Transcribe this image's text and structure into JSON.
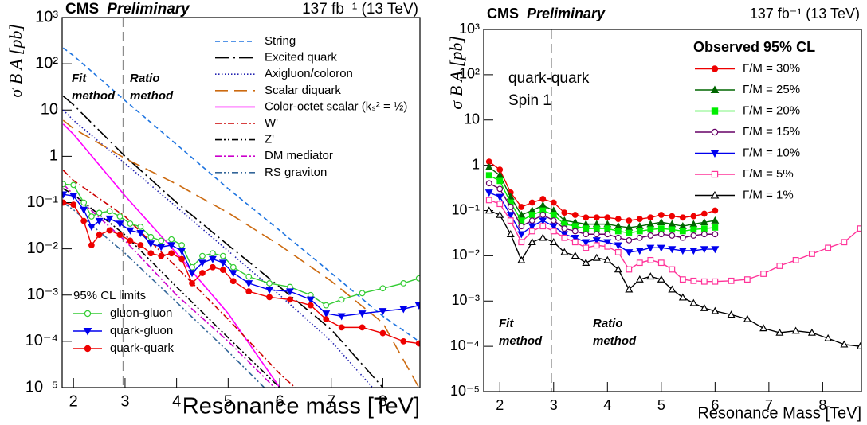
{
  "chart_data": [
    {
      "type": "line",
      "log_y": true,
      "title": "CMS",
      "subtitle": "Preliminary",
      "lumi": "137 fb⁻¹ (13 TeV)",
      "xlabel": "Resonance mass [TeV]",
      "ylabel": "σ B A [pb]",
      "xlim": [
        1.78,
        8.72
      ],
      "ylim": [
        1e-05,
        1000
      ],
      "xticks": [
        2,
        3,
        4,
        5,
        6,
        7,
        8
      ],
      "yticks": [
        {
          "value": 1000,
          "label": "10³"
        },
        {
          "value": 100,
          "label": "10²"
        },
        10,
        1,
        {
          "value": 0.1,
          "label": "10⁻¹"
        },
        {
          "value": 0.01,
          "label": "10⁻²"
        },
        {
          "value": 0.001,
          "label": "10⁻³"
        },
        {
          "value": 0.0001,
          "label": "10⁻⁴"
        },
        {
          "value": 1e-05,
          "label": "10⁻⁵"
        }
      ],
      "divider": 2.96,
      "annotations": [
        "Fit method",
        "Ratio method"
      ],
      "legend_title": "95% CL limits",
      "series": [
        {
          "name": "String",
          "color": "#1e74e0",
          "style": "dashed",
          "x": [
            1.8,
            2,
            3,
            4,
            5,
            6,
            7,
            8,
            8.7
          ],
          "values": [
            220,
            150,
            16,
            1.8,
            0.2,
            0.025,
            0.003,
            0.00035,
            0.0001
          ]
        },
        {
          "name": "Excited quark",
          "color": "#000000",
          "style": "long-dash-dot",
          "x": [
            1.8,
            2,
            3,
            4,
            5,
            6,
            7,
            8
          ],
          "values": [
            20,
            13,
            1,
            0.1,
            0.012,
            0.0015,
            0.00018,
            1e-05
          ]
        },
        {
          "name": "Axigluon/coloron",
          "color": "#2020b0",
          "style": "dotted",
          "x": [
            1.8,
            2,
            3,
            4,
            5,
            6,
            7,
            7.8
          ],
          "values": [
            10,
            6,
            0.7,
            0.08,
            0.009,
            0.001,
            0.0001,
            1e-05
          ]
        },
        {
          "name": "Scalar diquark",
          "color": "#cc6a10",
          "style": "long-dash",
          "x": [
            1.8,
            2,
            3,
            4,
            5,
            6,
            7,
            8,
            8.7
          ],
          "values": [
            6,
            4,
            0.9,
            0.25,
            0.06,
            0.012,
            0.002,
            0.00025,
            1e-05
          ]
        },
        {
          "name": "Color-octet scalar (kₛ² = ½)",
          "color": "#ff00ff",
          "style": "solid",
          "x": [
            1.8,
            2,
            3,
            4,
            5,
            6
          ],
          "values": [
            5,
            3,
            0.14,
            0.008,
            0.0004,
            1e-05
          ]
        },
        {
          "name": "W'",
          "color": "#cc0000",
          "style": "dash-dot",
          "x": [
            1.8,
            2,
            3,
            4,
            5,
            6,
            6.3
          ],
          "values": [
            0.5,
            0.3,
            0.05,
            0.004,
            0.0003,
            2e-05,
            1e-05
          ]
        },
        {
          "name": "Z'",
          "color": "#000000",
          "style": "dash-dot-dot",
          "x": [
            1.8,
            2,
            3,
            4,
            5,
            6
          ],
          "values": [
            0.2,
            0.15,
            0.02,
            0.0015,
            0.00012,
            1e-05
          ]
        },
        {
          "name": "DM mediator",
          "color": "#cc00cc",
          "style": "dash-dot",
          "x": [
            1.8,
            2,
            3,
            4,
            5,
            5.9
          ],
          "values": [
            0.25,
            0.15,
            0.015,
            0.001,
            0.0001,
            1e-05
          ]
        },
        {
          "name": "RS graviton",
          "color": "#336699",
          "style": "dash-dot-dot",
          "x": [
            1.8,
            2,
            3,
            4,
            5,
            5.7
          ],
          "values": [
            0.1,
            0.07,
            0.008,
            0.0007,
            6e-05,
            1e-05
          ]
        },
        {
          "name": "gluon-gluon",
          "color": "#33cc33",
          "style": "solid",
          "marker": "circle",
          "filled": false,
          "x": [
            1.8,
            2.0,
            2.2,
            2.35,
            2.5,
            2.7,
            2.9,
            3.1,
            3.3,
            3.5,
            3.7,
            3.9,
            4.1,
            4.3,
            4.5,
            4.7,
            4.9,
            5.1,
            5.4,
            5.8,
            6.2,
            6.6,
            6.9,
            7.2,
            7.6,
            8.0,
            8.4,
            8.7
          ],
          "values": [
            0.25,
            0.24,
            0.1,
            0.05,
            0.06,
            0.065,
            0.05,
            0.035,
            0.03,
            0.018,
            0.015,
            0.016,
            0.012,
            0.004,
            0.007,
            0.008,
            0.007,
            0.004,
            0.0025,
            0.0018,
            0.0015,
            0.001,
            0.0006,
            0.0008,
            0.0011,
            0.0014,
            0.0018,
            0.0023
          ]
        },
        {
          "name": "quark-gluon",
          "color": "#0000ee",
          "style": "solid",
          "marker": "triangle-down",
          "filled": true,
          "x": [
            1.8,
            2.0,
            2.2,
            2.35,
            2.5,
            2.7,
            2.9,
            3.1,
            3.3,
            3.5,
            3.7,
            3.9,
            4.1,
            4.3,
            4.5,
            4.7,
            4.9,
            5.1,
            5.4,
            5.8,
            6.2,
            6.6,
            6.9,
            7.2,
            7.6,
            8.0,
            8.4,
            8.7
          ],
          "values": [
            0.15,
            0.14,
            0.07,
            0.03,
            0.04,
            0.045,
            0.035,
            0.025,
            0.022,
            0.013,
            0.011,
            0.012,
            0.009,
            0.003,
            0.005,
            0.006,
            0.005,
            0.003,
            0.0018,
            0.0013,
            0.0012,
            0.0008,
            0.0004,
            0.00035,
            0.0004,
            0.00045,
            0.0005,
            0.0006
          ]
        },
        {
          "name": "quark-quark",
          "color": "#ee0000",
          "style": "solid",
          "marker": "circle",
          "filled": true,
          "x": [
            1.8,
            2.0,
            2.2,
            2.35,
            2.5,
            2.7,
            2.9,
            3.1,
            3.3,
            3.5,
            3.7,
            3.9,
            4.1,
            4.3,
            4.5,
            4.7,
            4.9,
            5.1,
            5.4,
            5.8,
            6.2,
            6.6,
            6.9,
            7.2,
            7.6,
            8.0,
            8.4,
            8.7
          ],
          "values": [
            0.1,
            0.09,
            0.04,
            0.012,
            0.02,
            0.025,
            0.02,
            0.015,
            0.012,
            0.008,
            0.007,
            0.008,
            0.006,
            0.0018,
            0.003,
            0.004,
            0.0035,
            0.002,
            0.0012,
            0.0009,
            0.0008,
            0.0006,
            0.0003,
            0.0002,
            0.0002,
            0.00015,
            0.0001,
            9e-05
          ]
        }
      ]
    },
    {
      "type": "line",
      "log_y": true,
      "title": "CMS",
      "subtitle": "Preliminary",
      "lumi": "137 fb⁻¹ (13 TeV)",
      "xlabel": "Resonance Mass [TeV]",
      "ylabel": "σ B A [pb]",
      "xlim": [
        1.7,
        8.72
      ],
      "ylim": [
        1e-05,
        1000
      ],
      "xticks": [
        2,
        3,
        4,
        5,
        6,
        7,
        8
      ],
      "yticks": [
        {
          "value": 1000,
          "label": "10³"
        },
        {
          "value": 100,
          "label": "10²"
        },
        10,
        1,
        {
          "value": 0.1,
          "label": "10⁻¹"
        },
        {
          "value": 0.01,
          "label": "10⁻²"
        },
        {
          "value": 0.001,
          "label": "10⁻³"
        },
        {
          "value": 0.0001,
          "label": "10⁻⁴"
        },
        {
          "value": 1e-05,
          "label": "10⁻⁵"
        }
      ],
      "divider": 2.96,
      "annotations": [
        "quark-quark",
        "Spin 1",
        "Fit method",
        "Ratio method"
      ],
      "legend_title": "Observed 95% CL",
      "x": [
        1.8,
        2.0,
        2.2,
        2.4,
        2.6,
        2.8,
        3.0,
        3.2,
        3.4,
        3.6,
        3.8,
        4.0,
        4.2,
        4.4,
        4.6,
        4.8,
        5.0,
        5.2,
        5.4,
        5.6,
        5.8,
        6.0,
        6.3,
        6.6,
        6.9,
        7.2,
        7.5,
        7.8,
        8.1,
        8.4,
        8.7
      ],
      "series": [
        {
          "name": "Γ/M = 30%",
          "color": "#ee0000",
          "marker": "circle",
          "filled": true,
          "values": [
            1.2,
            0.8,
            0.25,
            0.12,
            0.15,
            0.18,
            0.15,
            0.09,
            0.08,
            0.07,
            0.07,
            0.07,
            0.065,
            0.06,
            0.065,
            0.07,
            0.08,
            0.075,
            0.07,
            0.075,
            0.085,
            0.1,
            null,
            null,
            null,
            null,
            null,
            null,
            null,
            null,
            null
          ]
        },
        {
          "name": "Γ/M = 25%",
          "color": "#006600",
          "marker": "triangle",
          "filled": true,
          "values": [
            0.9,
            0.6,
            0.2,
            0.08,
            0.1,
            0.13,
            0.1,
            0.06,
            0.055,
            0.05,
            0.05,
            0.05,
            0.045,
            0.042,
            0.045,
            0.05,
            0.055,
            0.05,
            0.045,
            0.05,
            0.055,
            0.06,
            null,
            null,
            null,
            null,
            null,
            null,
            null,
            null,
            null
          ]
        },
        {
          "name": "Γ/M = 20%",
          "color": "#00ee00",
          "marker": "square",
          "filled": true,
          "values": [
            0.6,
            0.45,
            0.15,
            0.06,
            0.08,
            0.1,
            0.08,
            0.05,
            0.045,
            0.04,
            0.04,
            0.04,
            0.035,
            0.032,
            0.035,
            0.038,
            0.04,
            0.038,
            0.035,
            0.038,
            0.04,
            0.042,
            null,
            null,
            null,
            null,
            null,
            null,
            null,
            null,
            null
          ]
        },
        {
          "name": "Γ/M = 15%",
          "color": "#660066",
          "marker": "circle",
          "filled": false,
          "values": [
            0.4,
            0.3,
            0.12,
            0.045,
            0.06,
            0.08,
            0.06,
            0.04,
            0.035,
            0.03,
            0.03,
            0.03,
            0.025,
            0.022,
            0.025,
            0.028,
            0.03,
            0.028,
            0.025,
            0.028,
            0.03,
            0.03,
            null,
            null,
            null,
            null,
            null,
            null,
            null,
            null,
            null
          ]
        },
        {
          "name": "Γ/M = 10%",
          "color": "#0000ee",
          "marker": "triangle-down",
          "filled": true,
          "values": [
            0.25,
            0.2,
            0.08,
            0.03,
            0.045,
            0.06,
            0.045,
            0.03,
            0.025,
            0.02,
            0.022,
            0.02,
            0.017,
            0.012,
            0.013,
            0.015,
            0.015,
            0.014,
            0.013,
            0.013,
            0.014,
            0.014,
            null,
            null,
            null,
            null,
            null,
            null,
            null,
            null,
            null
          ]
        },
        {
          "name": "Γ/M = 5%",
          "color": "#ff3399",
          "marker": "square",
          "filled": false,
          "values": [
            0.17,
            0.14,
            0.06,
            0.02,
            0.035,
            0.045,
            0.035,
            0.025,
            0.02,
            0.015,
            0.017,
            0.016,
            0.012,
            0.005,
            0.007,
            0.008,
            0.007,
            0.005,
            0.003,
            0.0028,
            0.0027,
            0.0027,
            0.0028,
            0.003,
            0.004,
            0.006,
            0.008,
            0.011,
            0.015,
            0.02,
            0.04
          ]
        },
        {
          "name": "Γ/M = 1%",
          "color": "#000000",
          "marker": "triangle",
          "filled": false,
          "values": [
            0.1,
            0.08,
            0.03,
            0.008,
            0.02,
            0.025,
            0.02,
            0.012,
            0.01,
            0.007,
            0.009,
            0.008,
            0.005,
            0.0018,
            0.003,
            0.0035,
            0.003,
            0.0018,
            0.0012,
            0.0009,
            0.0007,
            0.0006,
            0.0005,
            0.0004,
            0.00025,
            0.0002,
            0.00022,
            0.0002,
            0.00015,
            0.00011,
            0.0001
          ]
        }
      ]
    }
  ]
}
